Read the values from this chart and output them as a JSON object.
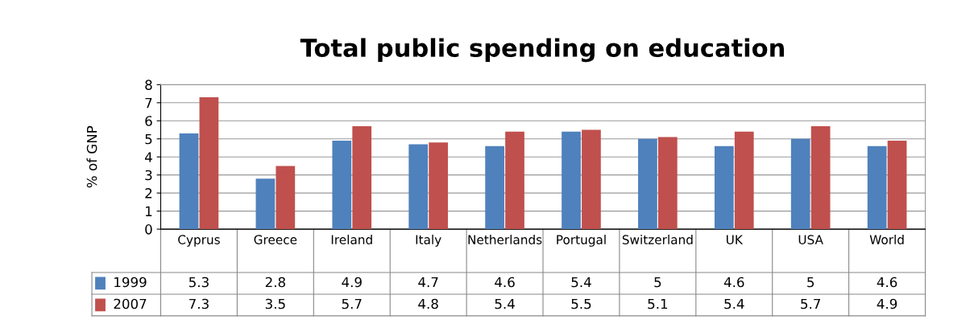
{
  "chart_data": {
    "type": "bar",
    "title": "Total public spending on education",
    "ylabel": "% of GNP",
    "categories": [
      "Cyprus",
      "Greece",
      "Ireland",
      "Italy",
      "Netherlands",
      "Portugal",
      "Switzerland",
      "UK",
      "USA",
      "World"
    ],
    "series": [
      {
        "name": "1999",
        "color": "#4f81bd",
        "values": [
          5.3,
          2.8,
          4.9,
          4.7,
          4.6,
          5.4,
          5,
          4.6,
          5,
          4.6
        ]
      },
      {
        "name": "2007",
        "color": "#c0504d",
        "values": [
          7.3,
          3.5,
          5.7,
          4.8,
          5.4,
          5.5,
          5.1,
          5.4,
          5.7,
          4.9
        ]
      }
    ],
    "ylim": [
      0,
      8
    ],
    "yticks": [
      0,
      1,
      2,
      3,
      4,
      5,
      6,
      7,
      8
    ],
    "grid": "y",
    "data_labels": true,
    "legend": "bottom"
  }
}
